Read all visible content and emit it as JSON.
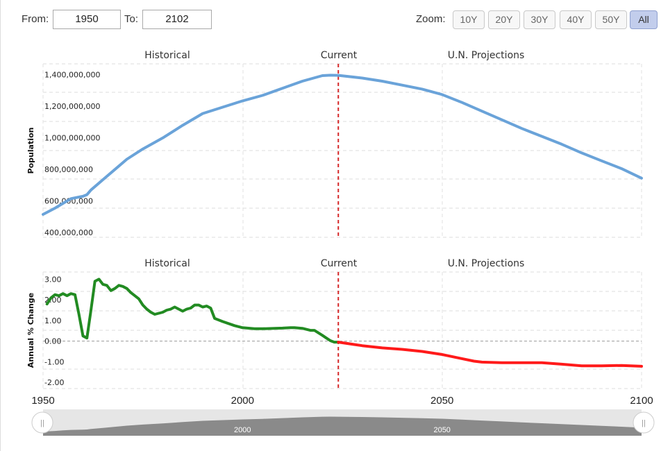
{
  "range": {
    "from_label": "From:",
    "from_value": "1950",
    "to_label": "To:",
    "to_value": "2102"
  },
  "zoom": {
    "label": "Zoom:",
    "buttons": [
      "10Y",
      "20Y",
      "30Y",
      "40Y",
      "50Y",
      "All"
    ],
    "active": "All"
  },
  "colors": {
    "population": "#6aa3d9",
    "change_historical": "#228b22",
    "change_projection": "#ff1a1a",
    "current_marker": "#d62728"
  },
  "chart_data": [
    {
      "type": "line",
      "ylabel": "Population",
      "sections": [
        "Historical",
        "Current",
        "U.N. Projections"
      ],
      "current_year": 2024,
      "ylim": [
        400000000,
        1500000000
      ],
      "yticks": [
        400000000,
        600000000,
        800000000,
        1000000000,
        1200000000,
        1400000000
      ],
      "ytick_labels": [
        "400,000,000",
        "600,000,000",
        "800,000,000",
        "1,000,000,000",
        "1,200,000,000",
        "1,400,000,000"
      ],
      "series": [
        {
          "x": [
            1950,
            1953,
            1955,
            1957,
            1959,
            1960,
            1961,
            1962,
            1965,
            1968,
            1971,
            1975,
            1980,
            1985,
            1990,
            1995,
            2000,
            2005,
            2010,
            2015,
            2020,
            2022,
            2024,
            2030,
            2035,
            2040,
            2045,
            2050,
            2055,
            2060,
            2065,
            2070,
            2075,
            2080,
            2085,
            2090,
            2095,
            2100
          ],
          "values": [
            545000000,
            585000000,
            615000000,
            645000000,
            655000000,
            660000000,
            670000000,
            700000000,
            765000000,
            830000000,
            895000000,
            960000000,
            1030000000,
            1110000000,
            1185000000,
            1225000000,
            1265000000,
            1300000000,
            1345000000,
            1390000000,
            1425000000,
            1428000000,
            1427000000,
            1410000000,
            1390000000,
            1365000000,
            1340000000,
            1305000000,
            1255000000,
            1200000000,
            1145000000,
            1090000000,
            1040000000,
            990000000,
            935000000,
            885000000,
            835000000,
            775000000
          ]
        }
      ]
    },
    {
      "type": "line",
      "ylabel": "Annual % Change",
      "sections": [
        "Historical",
        "Current",
        "U.N. Projections"
      ],
      "current_year": 2024,
      "ylim": [
        -2.3,
        3.35
      ],
      "yticks": [
        -2,
        -1,
        0,
        1,
        2,
        3
      ],
      "ytick_labels": [
        "-2.00",
        "-1.00",
        "0.00",
        "1.00",
        "2.00",
        "3.00"
      ],
      "xticks": [
        1950,
        2000,
        2050,
        2100
      ],
      "xtick_labels": [
        "1950",
        "2000",
        "2050",
        "2100"
      ],
      "series": [
        {
          "x": [
            1951,
            1952,
            1953,
            1954,
            1955,
            1956,
            1957,
            1958,
            1959,
            1960,
            1961,
            1962,
            1963,
            1964,
            1965,
            1966,
            1967,
            1968,
            1969,
            1970,
            1971,
            1972,
            1973,
            1974,
            1975,
            1976,
            1977,
            1978,
            1979,
            1980,
            1981,
            1982,
            1983,
            1984,
            1985,
            1986,
            1987,
            1988,
            1989,
            1990,
            1991,
            1992,
            1993,
            1995,
            1998,
            2000,
            2003,
            2005,
            2008,
            2010,
            2012,
            2013,
            2015,
            2017,
            2018,
            2020,
            2021,
            2022,
            2023,
            2024
          ],
          "values": [
            1.8,
            2.1,
            2.25,
            2.2,
            2.3,
            2.2,
            2.3,
            2.25,
            1.3,
            0.25,
            0.15,
            1.5,
            2.9,
            3.0,
            2.75,
            2.7,
            2.45,
            2.55,
            2.7,
            2.65,
            2.55,
            2.35,
            2.2,
            2.05,
            1.75,
            1.55,
            1.4,
            1.3,
            1.35,
            1.4,
            1.5,
            1.55,
            1.65,
            1.55,
            1.45,
            1.55,
            1.6,
            1.75,
            1.75,
            1.65,
            1.7,
            1.6,
            1.1,
            0.95,
            0.75,
            0.65,
            0.6,
            0.6,
            0.62,
            0.63,
            0.65,
            0.65,
            0.62,
            0.52,
            0.52,
            0.28,
            0.15,
            0.02,
            -0.05,
            -0.05
          ]
        },
        {
          "x": [
            2024,
            2030,
            2035,
            2040,
            2045,
            2050,
            2055,
            2058,
            2060,
            2065,
            2070,
            2075,
            2080,
            2085,
            2090,
            2095,
            2100
          ],
          "values": [
            -0.05,
            -0.22,
            -0.33,
            -0.4,
            -0.5,
            -0.65,
            -0.85,
            -0.97,
            -1.02,
            -1.05,
            -1.05,
            -1.05,
            -1.12,
            -1.2,
            -1.2,
            -1.18,
            -1.22
          ]
        }
      ]
    }
  ],
  "navigator": {
    "xtick_labels": [
      "2000",
      "2050"
    ],
    "xticks": [
      2000,
      2050
    ],
    "range": [
      1950,
      2102
    ],
    "handle_glyph": "||"
  }
}
